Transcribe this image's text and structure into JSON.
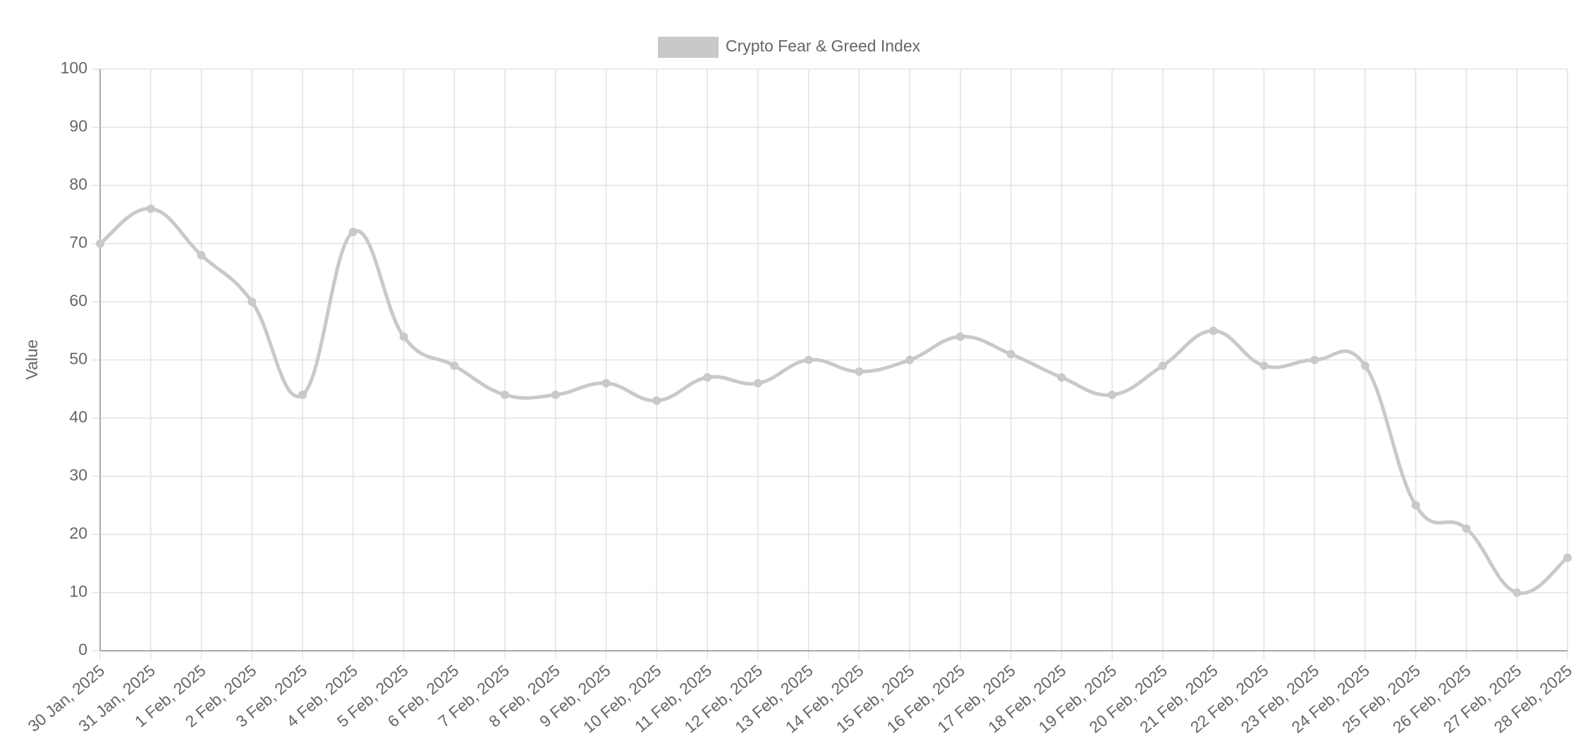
{
  "chart_data": {
    "type": "line",
    "y_label": "Value",
    "categories": [
      "30 Jan, 2025",
      "31 Jan, 2025",
      "1 Feb, 2025",
      "2 Feb, 2025",
      "3 Feb, 2025",
      "4 Feb, 2025",
      "5 Feb, 2025",
      "6 Feb, 2025",
      "7 Feb, 2025",
      "8 Feb, 2025",
      "9 Feb, 2025",
      "10 Feb, 2025",
      "11 Feb, 2025",
      "12 Feb, 2025",
      "13 Feb, 2025",
      "14 Feb, 2025",
      "15 Feb, 2025",
      "16 Feb, 2025",
      "17 Feb, 2025",
      "18 Feb, 2025",
      "19 Feb, 2025",
      "20 Feb, 2025",
      "21 Feb, 2025",
      "22 Feb, 2025",
      "23 Feb, 2025",
      "24 Feb, 2025",
      "25 Feb, 2025",
      "26 Feb, 2025",
      "27 Feb, 2025",
      "28 Feb, 2025"
    ],
    "series": [
      {
        "name": "Crypto Fear & Greed Index",
        "color": "#c9c9c9",
        "values": [
          70,
          76,
          68,
          60,
          44,
          72,
          54,
          49,
          44,
          44,
          46,
          43,
          47,
          46,
          50,
          48,
          50,
          54,
          51,
          47,
          44,
          49,
          55,
          49,
          50,
          49,
          25,
          21,
          10,
          16
        ]
      }
    ],
    "ylim": [
      0,
      100
    ],
    "yticks": [
      0,
      10,
      20,
      30,
      40,
      50,
      60,
      70,
      80,
      90,
      100
    ],
    "grid": true,
    "legend": "top"
  }
}
